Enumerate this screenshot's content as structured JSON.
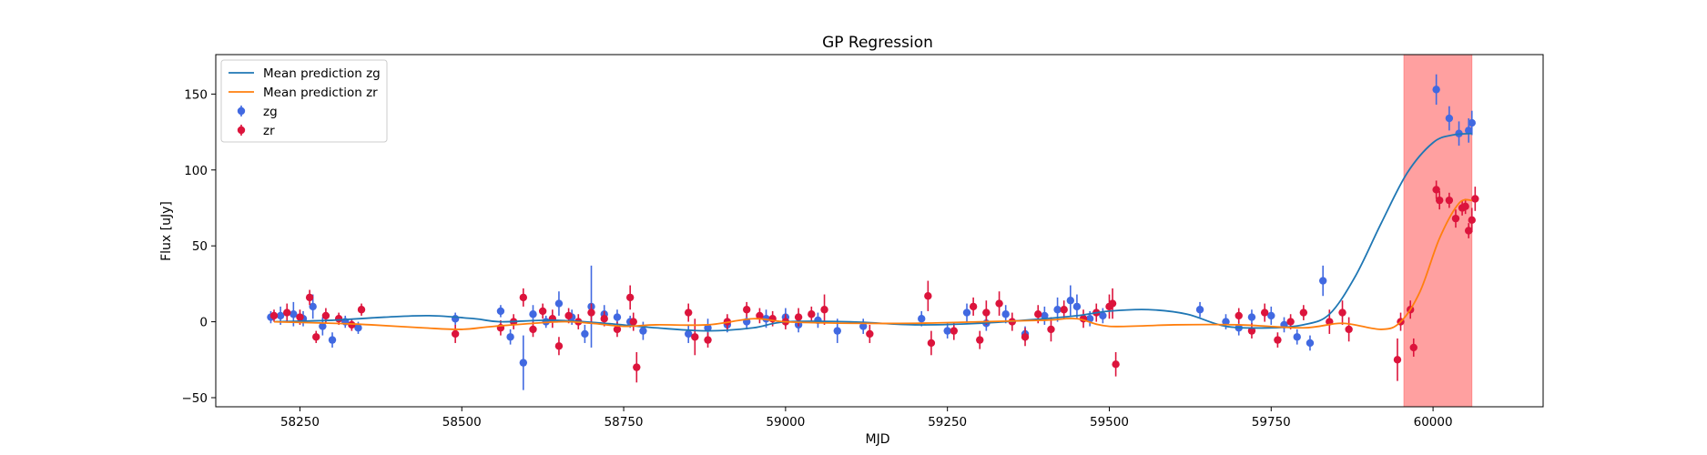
{
  "chart_data": {
    "type": "scatter",
    "title": "GP Regression",
    "xlabel": "MJD",
    "ylabel": "Flux [uJy]",
    "xlim": [
      58120,
      60170
    ],
    "ylim": [
      -56,
      176
    ],
    "xticks": [
      58250,
      58500,
      58750,
      59000,
      59250,
      59500,
      59750,
      60000
    ],
    "yticks": [
      -50,
      0,
      50,
      100,
      150
    ],
    "grid": false,
    "legend_position": "top-left",
    "shaded_region": {
      "x_start": 59955,
      "x_end": 60060,
      "color": "#ffa0a0"
    },
    "series": [
      {
        "name": "Mean prediction zg",
        "kind": "line",
        "color": "#1f77b4",
        "x": [
          58210,
          58300,
          58380,
          58450,
          58520,
          58560,
          58640,
          58720,
          58800,
          58880,
          58950,
          59000,
          59100,
          59200,
          59300,
          59400,
          59450,
          59500,
          59560,
          59620,
          59680,
          59750,
          59800,
          59840,
          59880,
          59920,
          59960,
          60000,
          60030,
          60060
        ],
        "y": [
          0,
          1,
          3,
          4,
          2,
          0,
          1,
          -1,
          -4,
          -6,
          -4,
          0,
          0,
          -2,
          -1,
          2,
          4,
          7,
          8,
          5,
          -3,
          -4,
          -2,
          5,
          30,
          65,
          98,
          118,
          123,
          124
        ]
      },
      {
        "name": "Mean prediction zr",
        "kind": "line",
        "color": "#ff7f0e",
        "x": [
          58210,
          58300,
          58360,
          58440,
          58500,
          58550,
          58650,
          58700,
          58750,
          58800,
          58880,
          58950,
          59000,
          59100,
          59200,
          59300,
          59400,
          59450,
          59500,
          59600,
          59700,
          59800,
          59860,
          59920,
          59950,
          59980,
          60010,
          60040,
          60060
        ],
        "y": [
          0,
          -1,
          -2,
          -4,
          -5,
          -3,
          0,
          -1,
          -3,
          -2,
          -2,
          2,
          0,
          -1,
          -1,
          0,
          1,
          2,
          -3,
          -2,
          -2,
          -4,
          -1,
          -5,
          0,
          20,
          55,
          78,
          80
        ]
      },
      {
        "name": "zg",
        "kind": "errorbar",
        "color": "#4169e1",
        "x": [
          58205,
          58220,
          58240,
          58255,
          58270,
          58285,
          58300,
          58320,
          58340,
          58490,
          58560,
          58575,
          58595,
          58610,
          58630,
          58650,
          58670,
          58690,
          58700,
          58720,
          58740,
          58760,
          58780,
          58850,
          58880,
          58910,
          58940,
          58970,
          59000,
          59020,
          59050,
          59080,
          59120,
          59210,
          59250,
          59280,
          59310,
          59340,
          59370,
          59400,
          59420,
          59440,
          59450,
          59470,
          59490,
          59640,
          59680,
          59700,
          59720,
          59750,
          59770,
          59790,
          59810,
          59830,
          60005,
          60025,
          60040,
          60055,
          60060
        ],
        "y": [
          3,
          4,
          5,
          2,
          10,
          -3,
          -12,
          0,
          -4,
          2,
          7,
          -10,
          -27,
          5,
          0,
          12,
          3,
          -8,
          10,
          5,
          3,
          0,
          -6,
          -8,
          -4,
          -2,
          0,
          2,
          3,
          -2,
          1,
          -6,
          -3,
          2,
          -6,
          6,
          -1,
          5,
          -8,
          4,
          8,
          14,
          10,
          2,
          4,
          8,
          0,
          -4,
          3,
          4,
          -2,
          -10,
          -14,
          27,
          153,
          134,
          124,
          126,
          131
        ],
        "err": [
          4,
          6,
          8,
          5,
          8,
          6,
          5,
          4,
          4,
          4,
          4,
          5,
          18,
          6,
          4,
          8,
          5,
          6,
          27,
          6,
          5,
          4,
          6,
          6,
          6,
          5,
          5,
          6,
          6,
          5,
          5,
          8,
          5,
          5,
          5,
          6,
          5,
          6,
          5,
          6,
          8,
          10,
          8,
          5,
          5,
          5,
          5,
          5,
          5,
          6,
          5,
          5,
          5,
          10,
          10,
          8,
          8,
          8,
          8
        ]
      },
      {
        "name": "zr",
        "kind": "errorbar",
        "color": "#dc143c",
        "x": [
          58210,
          58230,
          58250,
          58265,
          58275,
          58290,
          58310,
          58330,
          58345,
          58490,
          58560,
          58580,
          58595,
          58610,
          58625,
          58640,
          58650,
          58665,
          58680,
          58700,
          58720,
          58740,
          58760,
          58765,
          58770,
          58850,
          58860,
          58880,
          58910,
          58940,
          58960,
          58980,
          59000,
          59020,
          59040,
          59060,
          59130,
          59220,
          59225,
          59260,
          59290,
          59300,
          59310,
          59330,
          59350,
          59370,
          59390,
          59410,
          59430,
          59460,
          59480,
          59500,
          59505,
          59510,
          59700,
          59720,
          59740,
          59760,
          59780,
          59800,
          59840,
          59860,
          59870,
          59945,
          59950,
          59965,
          59970,
          60005,
          60010,
          60025,
          60035,
          60045,
          60050,
          60055,
          60060,
          60065
        ],
        "y": [
          4,
          6,
          3,
          16,
          -10,
          4,
          2,
          -2,
          8,
          -8,
          -4,
          0,
          16,
          -5,
          7,
          2,
          -16,
          4,
          0,
          6,
          2,
          -5,
          16,
          0,
          -30,
          6,
          -10,
          -12,
          0,
          8,
          4,
          2,
          0,
          3,
          5,
          8,
          -8,
          17,
          -14,
          -6,
          10,
          -12,
          6,
          12,
          0,
          -10,
          5,
          -5,
          8,
          2,
          6,
          10,
          12,
          -28,
          4,
          -6,
          6,
          -12,
          0,
          6,
          0,
          6,
          -5,
          -25,
          0,
          8,
          -17,
          87,
          80,
          80,
          68,
          75,
          76,
          60,
          67,
          81
        ],
        "err": [
          4,
          6,
          5,
          5,
          4,
          5,
          4,
          4,
          4,
          6,
          5,
          5,
          6,
          5,
          5,
          6,
          6,
          5,
          5,
          6,
          5,
          5,
          8,
          6,
          10,
          6,
          12,
          5,
          5,
          5,
          5,
          5,
          5,
          6,
          5,
          10,
          6,
          10,
          8,
          6,
          6,
          6,
          8,
          8,
          6,
          6,
          6,
          8,
          6,
          6,
          6,
          8,
          10,
          8,
          5,
          5,
          6,
          5,
          5,
          5,
          8,
          8,
          8,
          14,
          6,
          6,
          6,
          6,
          6,
          5,
          6,
          5,
          5,
          5,
          8,
          8
        ]
      }
    ]
  }
}
